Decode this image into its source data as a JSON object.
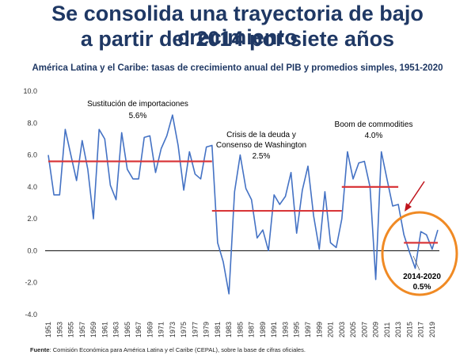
{
  "header": {
    "title_line1": "Se consolida una trayectoria de bajo crecimiento",
    "title_line2": "a partir del 2014 por siete años",
    "subtitle": "América Latina y el Caribe: tasas de crecimiento anual del PIB y promedios simples, 1951-2020"
  },
  "footer": {
    "source_label": "Fuente",
    "source_text": ": Comisión Económica para América Latina y el Caribe (CEPAL), sobre la base de cifras oficiales."
  },
  "colors": {
    "series": "#4472c4",
    "average": "#d9383b",
    "highlight": "#f08a24",
    "arrow": "#c0141c",
    "title": "#1f3864"
  },
  "chart_data": {
    "type": "line",
    "title": "América Latina y el Caribe: tasas de crecimiento anual del PIB y promedios simples, 1951-2020",
    "xlabel": "",
    "ylabel": "",
    "ylim": [
      -4,
      10
    ],
    "yticks": [
      "10.0",
      "8.0",
      "6.0",
      "4.0",
      "2.0",
      "0.0",
      "-2.0",
      "-4.0"
    ],
    "xticks": [
      "1951",
      "1953",
      "1955",
      "1957",
      "1959",
      "1961",
      "1963",
      "1965",
      "1967",
      "1969",
      "1971",
      "1973",
      "1975",
      "1977",
      "1979",
      "1981",
      "1983",
      "1985",
      "1987",
      "1989",
      "1991",
      "1993",
      "1995",
      "1997",
      "1999",
      "2001",
      "2003",
      "2005",
      "2007",
      "2009",
      "2011",
      "2013",
      "2015",
      "2017",
      "2019"
    ],
    "x": [
      1951,
      1952,
      1953,
      1954,
      1955,
      1956,
      1957,
      1958,
      1959,
      1960,
      1961,
      1962,
      1963,
      1964,
      1965,
      1966,
      1967,
      1968,
      1969,
      1970,
      1971,
      1972,
      1973,
      1974,
      1975,
      1976,
      1977,
      1978,
      1979,
      1980,
      1981,
      1982,
      1983,
      1984,
      1985,
      1986,
      1987,
      1988,
      1989,
      1990,
      1991,
      1992,
      1993,
      1994,
      1995,
      1996,
      1997,
      1998,
      1999,
      2000,
      2001,
      2002,
      2003,
      2004,
      2005,
      2006,
      2007,
      2008,
      2009,
      2010,
      2011,
      2012,
      2013,
      2014,
      2015,
      2016,
      2017,
      2018,
      2019,
      2020
    ],
    "series": [
      {
        "name": "Tasa de crecimiento anual del PIB",
        "values": [
          6.0,
          3.5,
          3.5,
          7.6,
          6.0,
          4.4,
          6.9,
          5.1,
          2.0,
          7.6,
          7.0,
          4.1,
          3.2,
          7.4,
          5.1,
          4.5,
          4.5,
          7.1,
          7.2,
          4.9,
          6.4,
          7.2,
          8.5,
          6.6,
          3.8,
          6.2,
          4.8,
          4.5,
          6.5,
          6.6,
          0.5,
          -0.7,
          -2.7,
          3.7,
          6.0,
          3.9,
          3.2,
          0.8,
          1.3,
          0.0,
          3.5,
          2.9,
          3.4,
          4.9,
          1.1,
          3.8,
          5.3,
          2.2,
          0.1,
          3.7,
          0.5,
          0.2,
          2.0,
          6.2,
          4.5,
          5.5,
          5.6,
          4.0,
          -1.8,
          6.2,
          4.5,
          2.8,
          2.9,
          1.0,
          -0.1,
          -1.1,
          1.2,
          1.0,
          0.1,
          1.3
        ]
      }
    ],
    "averages": [
      {
        "label": "Sustitución de importaciones",
        "value_label": "5.6%",
        "value": 5.6,
        "from": 1951,
        "to": 1980
      },
      {
        "label": "Crisis de la deuda y Consenso de Washington",
        "label_line1": "Crisis de la deuda y",
        "label_line2": "Consenso de Washington",
        "value_label": "2.5%",
        "value": 2.5,
        "from": 1980,
        "to": 2003
      },
      {
        "label": "Boom de commodities",
        "value_label": "4.0%",
        "value": 4.0,
        "from": 2003,
        "to": 2013
      },
      {
        "label": "2014-2020",
        "value_label": "0.5%",
        "value": 0.5,
        "from": 2014,
        "to": 2020
      }
    ]
  }
}
